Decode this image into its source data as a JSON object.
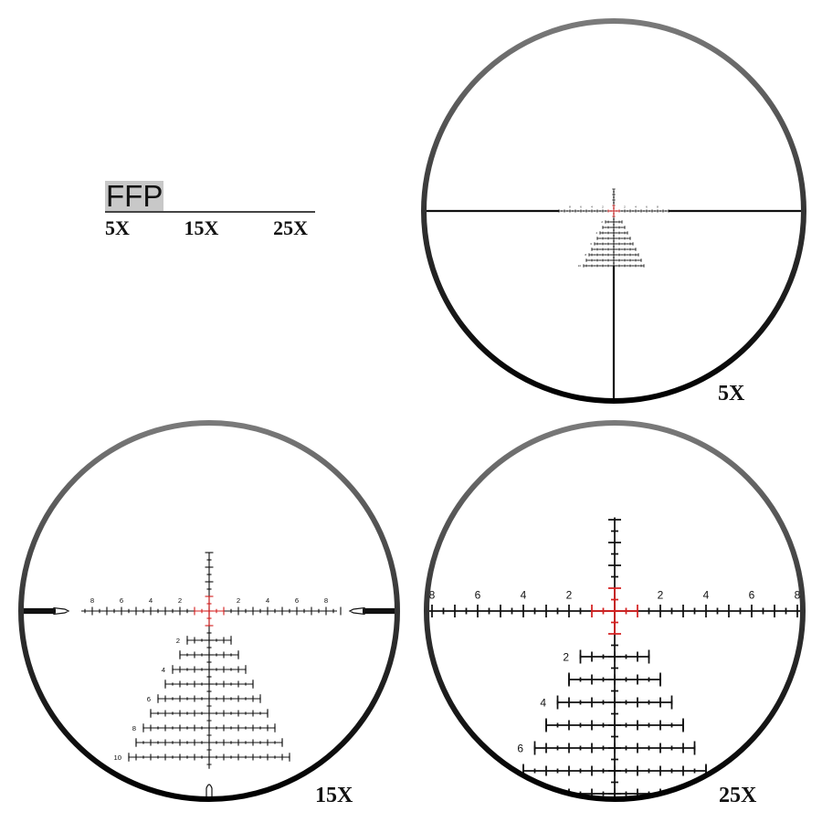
{
  "legend": {
    "title": "FFP",
    "magnifications": [
      "5X",
      "15X",
      "25X"
    ]
  },
  "views": [
    {
      "label": "5X",
      "magnification": 5
    },
    {
      "label": "15X",
      "magnification": 15
    },
    {
      "label": "25X",
      "magnification": 25
    }
  ],
  "reticle": {
    "horizontal_labels": [
      "2",
      "4",
      "6",
      "8"
    ],
    "tree_labels": [
      "2",
      "4",
      "6",
      "8",
      "10"
    ],
    "center_color": "#d42020",
    "line_color": "#111111"
  }
}
